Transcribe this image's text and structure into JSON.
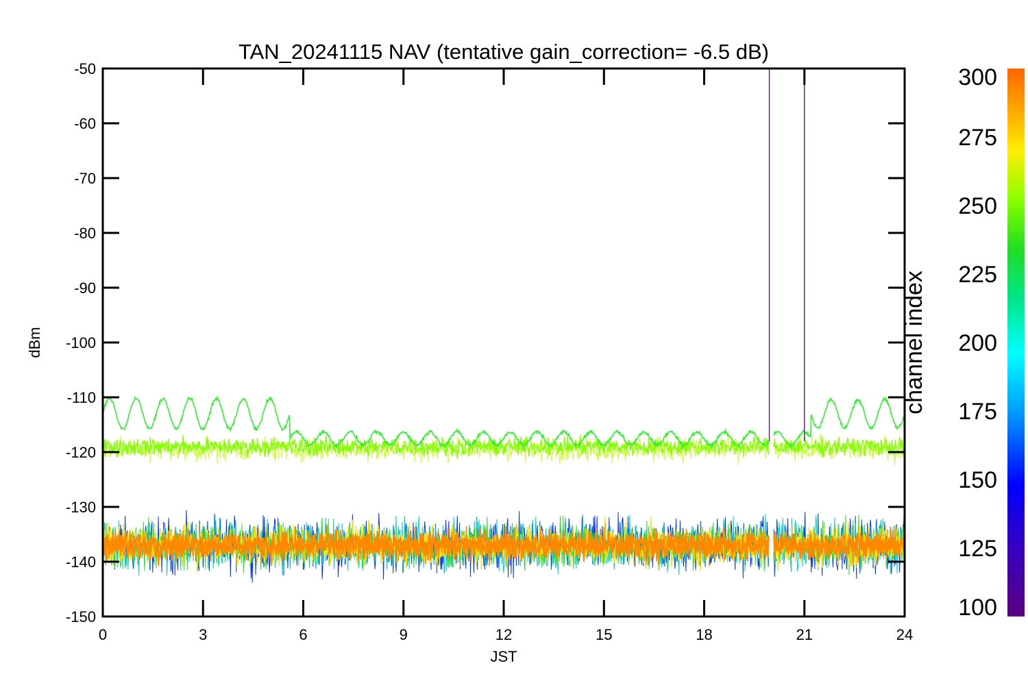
{
  "chart_data": {
    "type": "line",
    "title": "TAN_20241115 NAV (tentative gain_correction= -6.5 dB)",
    "xlabel": "JST",
    "ylabel": "dBm",
    "xlim": [
      0,
      24
    ],
    "ylim": [
      -150,
      -50
    ],
    "x_ticks": [
      "0",
      "3",
      "6",
      "9",
      "12",
      "15",
      "18",
      "21",
      "24"
    ],
    "y_ticks": [
      "-50",
      "-60",
      "-70",
      "-80",
      "-90",
      "-100",
      "-110",
      "-120",
      "-130",
      "-140",
      "-150"
    ],
    "grid": false,
    "colorbar": {
      "title": "channel index",
      "range": [
        100,
        300
      ],
      "ticks": [
        "300",
        "275",
        "250",
        "225",
        "200",
        "175",
        "150",
        "125",
        "100"
      ],
      "colormap": "rainbow"
    },
    "series": [
      {
        "channel_range": [
          255,
          262
        ],
        "center": -119,
        "spread": 3.5,
        "color": "#80ff00"
      },
      {
        "channel_range": [
          225,
          245
        ],
        "center": -113.5,
        "spread": 2.5,
        "oscillating": true,
        "color": "#33ee33"
      },
      {
        "channel_range": [
          100,
          300
        ],
        "center": -137,
        "spread": 7,
        "color": "#ff8800"
      }
    ],
    "gaps_jst": [
      20.0
    ],
    "spikes_jst": [
      19.95,
      21.0
    ],
    "colors": {
      "noise_floor": "#ff8800",
      "noise_floor_edge": "#ffdd00",
      "green_band": "#80ff00",
      "oscillating_band": "#33ee33",
      "spike": "#551a8b"
    }
  }
}
